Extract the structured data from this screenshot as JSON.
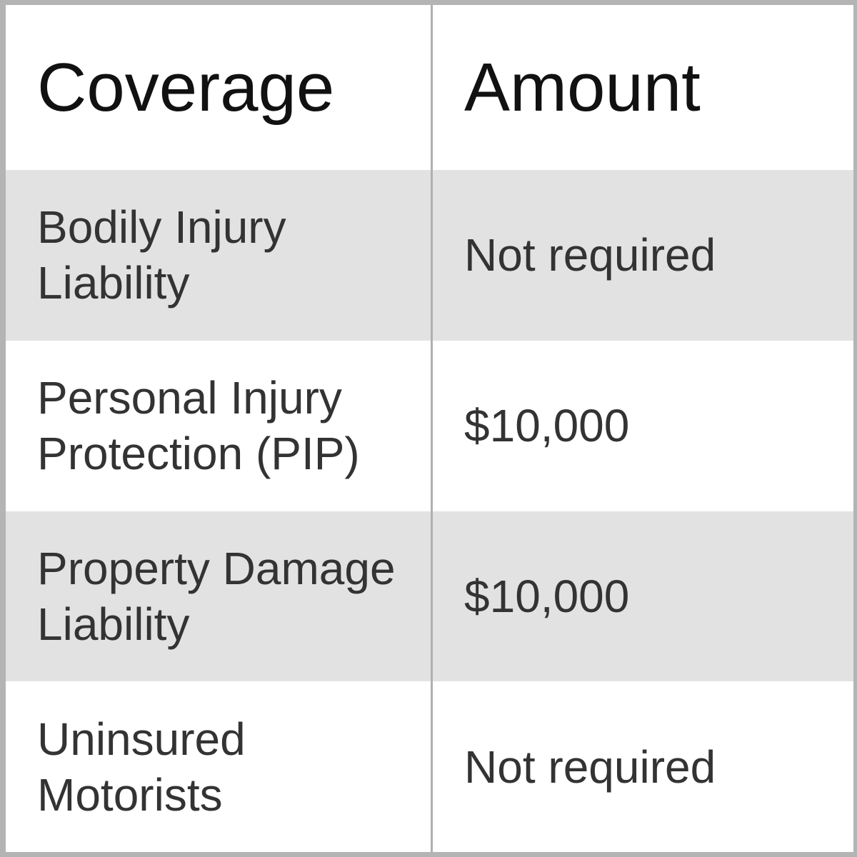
{
  "chart_data": {
    "type": "table",
    "columns": [
      "Coverage",
      "Amount"
    ],
    "rows": [
      {
        "coverage": "Bodily Injury Liability",
        "amount": "Not required"
      },
      {
        "coverage": "Personal Injury Protection (PIP)",
        "amount": "$10,000"
      },
      {
        "coverage": "Property Damage Liability",
        "amount": "$10,000"
      },
      {
        "coverage": "Uninsured Motorists",
        "amount": "Not required"
      }
    ]
  },
  "colors": {
    "alt_row_bg": "#e2e2e2",
    "outer_border": "#b4b4b4",
    "column_divider": "#b0b0b0",
    "header_text": "#111111",
    "body_text": "#333333"
  }
}
